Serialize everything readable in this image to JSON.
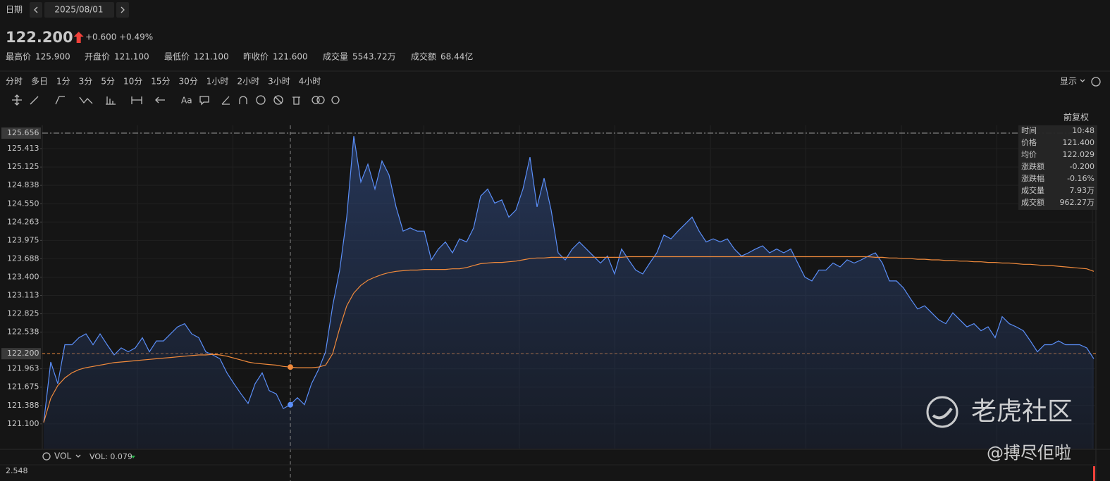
{
  "header": {
    "date_label": "日期",
    "date": "2025/08/01"
  },
  "quote": {
    "price": "122.200",
    "change": "+0.600",
    "change_pct": "+0.49%",
    "color": "#f0413a"
  },
  "stats": [
    {
      "label": "最高价",
      "value": "125.900",
      "color": "#f0413a"
    },
    {
      "label": "开盘价",
      "value": "121.100",
      "color": "#2bb24c"
    },
    {
      "label": "最低价",
      "value": "121.100",
      "color": "#2bb24c"
    },
    {
      "label": "昨收价",
      "value": "121.600",
      "color": "#c8c8c8"
    },
    {
      "label": "成交量",
      "value": "5543.72万",
      "color": "#c8c8c8"
    },
    {
      "label": "成交额",
      "value": "68.44亿",
      "color": "#c8c8c8"
    }
  ],
  "periods": [
    "分时",
    "多日",
    "1分",
    "3分",
    "5分",
    "10分",
    "15分",
    "30分",
    "1小时",
    "2小时",
    "3小时",
    "4小时"
  ],
  "display_label": "显示",
  "toolbar": {
    "font_label": "Aa"
  },
  "adjust_label": "前复权",
  "tooltip": {
    "rows": [
      {
        "label": "时间",
        "value": "10:48",
        "color": "#e0e0e0"
      },
      {
        "label": "价格",
        "value": "121.400",
        "color": "#2bb24c"
      },
      {
        "label": "均价",
        "value": "122.029",
        "color": "#f0413a"
      },
      {
        "label": "涨跌额",
        "value": "-0.200",
        "color": "#2bb24c"
      },
      {
        "label": "涨跌幅",
        "value": "-0.16%",
        "color": "#2bb24c"
      },
      {
        "label": "成交量",
        "value": "7.93万",
        "color": "#e0e0e0"
      },
      {
        "label": "成交额",
        "value": "962.27万",
        "color": "#e0e0e0"
      }
    ]
  },
  "chart_data": {
    "type": "line",
    "ylim": [
      120.712,
      125.778
    ],
    "yticks": [
      125.656,
      125.413,
      125.125,
      124.838,
      {
        "value": 124.55,
        "label": "124.550"
      },
      124.263,
      123.975,
      123.688,
      {
        "value": 123.4,
        "label": "123.400"
      },
      123.113,
      122.825,
      122.538,
      {
        "value": 122.2,
        "label": "122.200"
      },
      121.963,
      121.675,
      121.388,
      {
        "value": 121.1,
        "label": "121.100"
      }
    ],
    "grid": true,
    "series": [
      {
        "name": "价格",
        "color": "#5b8ff9",
        "fill": true,
        "values": [
          121.12,
          122.07,
          121.73,
          122.34,
          122.34,
          122.45,
          122.51,
          122.34,
          122.51,
          122.34,
          122.18,
          122.29,
          122.23,
          122.29,
          122.45,
          122.23,
          122.4,
          122.4,
          122.51,
          122.62,
          122.67,
          122.51,
          122.45,
          122.23,
          122.18,
          122.12,
          121.9,
          121.73,
          121.57,
          121.42,
          121.73,
          121.9,
          121.62,
          121.57,
          121.34,
          121.4,
          121.51,
          121.4,
          121.73,
          121.95,
          122.23,
          122.95,
          123.51,
          124.34,
          125.61,
          124.89,
          125.17,
          124.78,
          125.22,
          125.0,
          124.5,
          124.12,
          124.17,
          124.12,
          124.12,
          123.67,
          123.84,
          123.95,
          123.78,
          124.0,
          123.95,
          124.17,
          124.67,
          124.78,
          124.56,
          124.61,
          124.34,
          124.45,
          124.78,
          125.28,
          124.5,
          124.95,
          124.45,
          123.78,
          123.67,
          123.84,
          123.95,
          123.84,
          123.73,
          123.62,
          123.73,
          123.45,
          123.84,
          123.67,
          123.51,
          123.45,
          123.62,
          123.78,
          124.06,
          124.0,
          124.12,
          124.23,
          124.34,
          124.12,
          123.95,
          124.0,
          123.95,
          124.0,
          123.84,
          123.73,
          123.78,
          123.84,
          123.89,
          123.78,
          123.84,
          123.78,
          123.84,
          123.62,
          123.4,
          123.34,
          123.51,
          123.51,
          123.62,
          123.56,
          123.67,
          123.62,
          123.67,
          123.73,
          123.78,
          123.62,
          123.34,
          123.34,
          123.23,
          123.06,
          122.9,
          122.95,
          122.84,
          122.73,
          122.67,
          122.84,
          122.73,
          122.62,
          122.67,
          122.56,
          122.62,
          122.45,
          122.78,
          122.67,
          122.62,
          122.56,
          122.4,
          122.23,
          122.34,
          122.34,
          122.4,
          122.34,
          122.34,
          122.34,
          122.29,
          122.12
        ]
      },
      {
        "name": "均价",
        "color": "#f08a3c",
        "fill": false,
        "values": [
          121.12,
          121.5,
          121.7,
          121.82,
          121.9,
          121.95,
          121.98,
          122.0,
          122.02,
          122.04,
          122.06,
          122.07,
          122.08,
          122.09,
          122.1,
          122.11,
          122.12,
          122.13,
          122.14,
          122.15,
          122.16,
          122.17,
          122.18,
          122.18,
          122.19,
          122.18,
          122.16,
          122.13,
          122.1,
          122.07,
          122.05,
          122.04,
          122.03,
          122.02,
          122.0,
          121.99,
          121.98,
          121.98,
          121.98,
          121.99,
          122.02,
          122.2,
          122.6,
          122.95,
          123.15,
          123.27,
          123.35,
          123.4,
          123.44,
          123.47,
          123.49,
          123.5,
          123.51,
          123.51,
          123.52,
          123.52,
          123.52,
          123.52,
          123.53,
          123.53,
          123.55,
          123.58,
          123.61,
          123.62,
          123.63,
          123.63,
          123.64,
          123.65,
          123.67,
          123.69,
          123.7,
          123.7,
          123.71,
          123.71,
          123.71,
          123.71,
          123.71,
          123.71,
          123.71,
          123.71,
          123.71,
          123.71,
          123.71,
          123.72,
          123.72,
          123.72,
          123.72,
          123.72,
          123.72,
          123.72,
          123.72,
          123.72,
          123.72,
          123.72,
          123.72,
          123.72,
          123.72,
          123.72,
          123.72,
          123.72,
          123.72,
          123.72,
          123.72,
          123.72,
          123.72,
          123.72,
          123.72,
          123.72,
          123.72,
          123.72,
          123.72,
          123.72,
          123.72,
          123.72,
          123.72,
          123.72,
          123.72,
          123.72,
          123.71,
          123.71,
          123.7,
          123.7,
          123.69,
          123.69,
          123.68,
          123.68,
          123.67,
          123.67,
          123.66,
          123.66,
          123.65,
          123.65,
          123.64,
          123.64,
          123.63,
          123.63,
          123.62,
          123.62,
          123.61,
          123.6,
          123.6,
          123.59,
          123.58,
          123.58,
          123.57,
          123.56,
          123.55,
          123.54,
          123.53,
          123.49
        ]
      }
    ]
  },
  "volume_panel": {
    "label": "VOL",
    "value_text": "VOL: 0.079",
    "tick": "2.548"
  },
  "watermark": {
    "brand": "老虎社区",
    "user": "@搏尽佢啦"
  }
}
